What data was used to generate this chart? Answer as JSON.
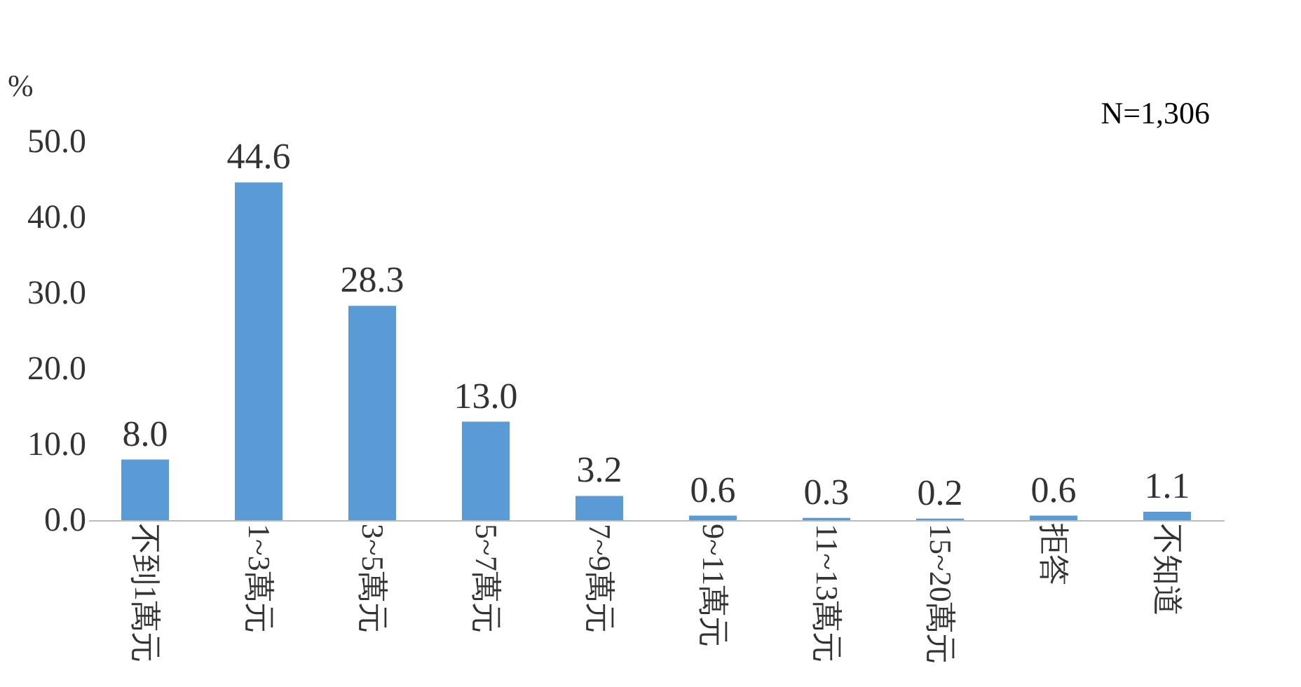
{
  "chart_data": {
    "type": "bar",
    "ylabel": "%",
    "categories": [
      "不到1萬元",
      "1~3萬元",
      "3~5萬元",
      "5~7萬元",
      "7~9萬元",
      "9~11萬元",
      "11~13萬元",
      "15~20萬元",
      "拒答",
      "不知道"
    ],
    "values": [
      8.0,
      44.6,
      28.3,
      13.0,
      3.2,
      0.6,
      0.3,
      0.2,
      0.6,
      1.1
    ],
    "value_labels": [
      "8.0",
      "44.6",
      "28.3",
      "13.0",
      "3.2",
      "0.6",
      "0.3",
      "0.2",
      "0.6",
      "1.1"
    ],
    "color": "#5b9bd5",
    "ylim": [
      0,
      50
    ],
    "yticks": [
      {
        "value": 0,
        "label": "0.0"
      },
      {
        "value": 10,
        "label": "10.0"
      },
      {
        "value": 20,
        "label": "20.0"
      },
      {
        "value": 30,
        "label": "30.0"
      },
      {
        "value": 40,
        "label": "40.0"
      },
      {
        "value": 50,
        "label": "50.0"
      }
    ],
    "annotations": [
      "N=1,306"
    ],
    "grid": false
  }
}
